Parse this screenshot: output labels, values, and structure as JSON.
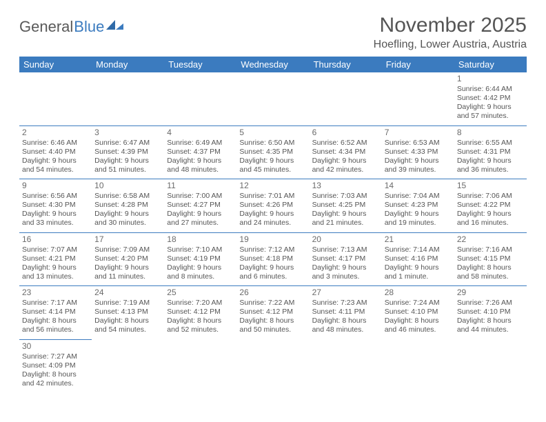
{
  "logo": {
    "word1": "General",
    "word2": "Blue"
  },
  "month_title": "November 2025",
  "location": "Hoefling, Lower Austria, Austria",
  "colors": {
    "header_bg": "#3b7bbf",
    "header_text": "#ffffff",
    "border": "#3b7bbf",
    "text": "#555555",
    "logo_gray": "#595959",
    "logo_blue": "#3b7bbf"
  },
  "weekdays": [
    "Sunday",
    "Monday",
    "Tuesday",
    "Wednesday",
    "Thursday",
    "Friday",
    "Saturday"
  ],
  "weeks": [
    [
      null,
      null,
      null,
      null,
      null,
      null,
      {
        "n": "1",
        "sr": "Sunrise: 6:44 AM",
        "ss": "Sunset: 4:42 PM",
        "d1": "Daylight: 9 hours",
        "d2": "and 57 minutes."
      }
    ],
    [
      {
        "n": "2",
        "sr": "Sunrise: 6:46 AM",
        "ss": "Sunset: 4:40 PM",
        "d1": "Daylight: 9 hours",
        "d2": "and 54 minutes."
      },
      {
        "n": "3",
        "sr": "Sunrise: 6:47 AM",
        "ss": "Sunset: 4:39 PM",
        "d1": "Daylight: 9 hours",
        "d2": "and 51 minutes."
      },
      {
        "n": "4",
        "sr": "Sunrise: 6:49 AM",
        "ss": "Sunset: 4:37 PM",
        "d1": "Daylight: 9 hours",
        "d2": "and 48 minutes."
      },
      {
        "n": "5",
        "sr": "Sunrise: 6:50 AM",
        "ss": "Sunset: 4:35 PM",
        "d1": "Daylight: 9 hours",
        "d2": "and 45 minutes."
      },
      {
        "n": "6",
        "sr": "Sunrise: 6:52 AM",
        "ss": "Sunset: 4:34 PM",
        "d1": "Daylight: 9 hours",
        "d2": "and 42 minutes."
      },
      {
        "n": "7",
        "sr": "Sunrise: 6:53 AM",
        "ss": "Sunset: 4:33 PM",
        "d1": "Daylight: 9 hours",
        "d2": "and 39 minutes."
      },
      {
        "n": "8",
        "sr": "Sunrise: 6:55 AM",
        "ss": "Sunset: 4:31 PM",
        "d1": "Daylight: 9 hours",
        "d2": "and 36 minutes."
      }
    ],
    [
      {
        "n": "9",
        "sr": "Sunrise: 6:56 AM",
        "ss": "Sunset: 4:30 PM",
        "d1": "Daylight: 9 hours",
        "d2": "and 33 minutes."
      },
      {
        "n": "10",
        "sr": "Sunrise: 6:58 AM",
        "ss": "Sunset: 4:28 PM",
        "d1": "Daylight: 9 hours",
        "d2": "and 30 minutes."
      },
      {
        "n": "11",
        "sr": "Sunrise: 7:00 AM",
        "ss": "Sunset: 4:27 PM",
        "d1": "Daylight: 9 hours",
        "d2": "and 27 minutes."
      },
      {
        "n": "12",
        "sr": "Sunrise: 7:01 AM",
        "ss": "Sunset: 4:26 PM",
        "d1": "Daylight: 9 hours",
        "d2": "and 24 minutes."
      },
      {
        "n": "13",
        "sr": "Sunrise: 7:03 AM",
        "ss": "Sunset: 4:25 PM",
        "d1": "Daylight: 9 hours",
        "d2": "and 21 minutes."
      },
      {
        "n": "14",
        "sr": "Sunrise: 7:04 AM",
        "ss": "Sunset: 4:23 PM",
        "d1": "Daylight: 9 hours",
        "d2": "and 19 minutes."
      },
      {
        "n": "15",
        "sr": "Sunrise: 7:06 AM",
        "ss": "Sunset: 4:22 PM",
        "d1": "Daylight: 9 hours",
        "d2": "and 16 minutes."
      }
    ],
    [
      {
        "n": "16",
        "sr": "Sunrise: 7:07 AM",
        "ss": "Sunset: 4:21 PM",
        "d1": "Daylight: 9 hours",
        "d2": "and 13 minutes."
      },
      {
        "n": "17",
        "sr": "Sunrise: 7:09 AM",
        "ss": "Sunset: 4:20 PM",
        "d1": "Daylight: 9 hours",
        "d2": "and 11 minutes."
      },
      {
        "n": "18",
        "sr": "Sunrise: 7:10 AM",
        "ss": "Sunset: 4:19 PM",
        "d1": "Daylight: 9 hours",
        "d2": "and 8 minutes."
      },
      {
        "n": "19",
        "sr": "Sunrise: 7:12 AM",
        "ss": "Sunset: 4:18 PM",
        "d1": "Daylight: 9 hours",
        "d2": "and 6 minutes."
      },
      {
        "n": "20",
        "sr": "Sunrise: 7:13 AM",
        "ss": "Sunset: 4:17 PM",
        "d1": "Daylight: 9 hours",
        "d2": "and 3 minutes."
      },
      {
        "n": "21",
        "sr": "Sunrise: 7:14 AM",
        "ss": "Sunset: 4:16 PM",
        "d1": "Daylight: 9 hours",
        "d2": "and 1 minute."
      },
      {
        "n": "22",
        "sr": "Sunrise: 7:16 AM",
        "ss": "Sunset: 4:15 PM",
        "d1": "Daylight: 8 hours",
        "d2": "and 58 minutes."
      }
    ],
    [
      {
        "n": "23",
        "sr": "Sunrise: 7:17 AM",
        "ss": "Sunset: 4:14 PM",
        "d1": "Daylight: 8 hours",
        "d2": "and 56 minutes."
      },
      {
        "n": "24",
        "sr": "Sunrise: 7:19 AM",
        "ss": "Sunset: 4:13 PM",
        "d1": "Daylight: 8 hours",
        "d2": "and 54 minutes."
      },
      {
        "n": "25",
        "sr": "Sunrise: 7:20 AM",
        "ss": "Sunset: 4:12 PM",
        "d1": "Daylight: 8 hours",
        "d2": "and 52 minutes."
      },
      {
        "n": "26",
        "sr": "Sunrise: 7:22 AM",
        "ss": "Sunset: 4:12 PM",
        "d1": "Daylight: 8 hours",
        "d2": "and 50 minutes."
      },
      {
        "n": "27",
        "sr": "Sunrise: 7:23 AM",
        "ss": "Sunset: 4:11 PM",
        "d1": "Daylight: 8 hours",
        "d2": "and 48 minutes."
      },
      {
        "n": "28",
        "sr": "Sunrise: 7:24 AM",
        "ss": "Sunset: 4:10 PM",
        "d1": "Daylight: 8 hours",
        "d2": "and 46 minutes."
      },
      {
        "n": "29",
        "sr": "Sunrise: 7:26 AM",
        "ss": "Sunset: 4:10 PM",
        "d1": "Daylight: 8 hours",
        "d2": "and 44 minutes."
      }
    ],
    [
      {
        "n": "30",
        "sr": "Sunrise: 7:27 AM",
        "ss": "Sunset: 4:09 PM",
        "d1": "Daylight: 8 hours",
        "d2": "and 42 minutes."
      },
      null,
      null,
      null,
      null,
      null,
      null
    ]
  ]
}
